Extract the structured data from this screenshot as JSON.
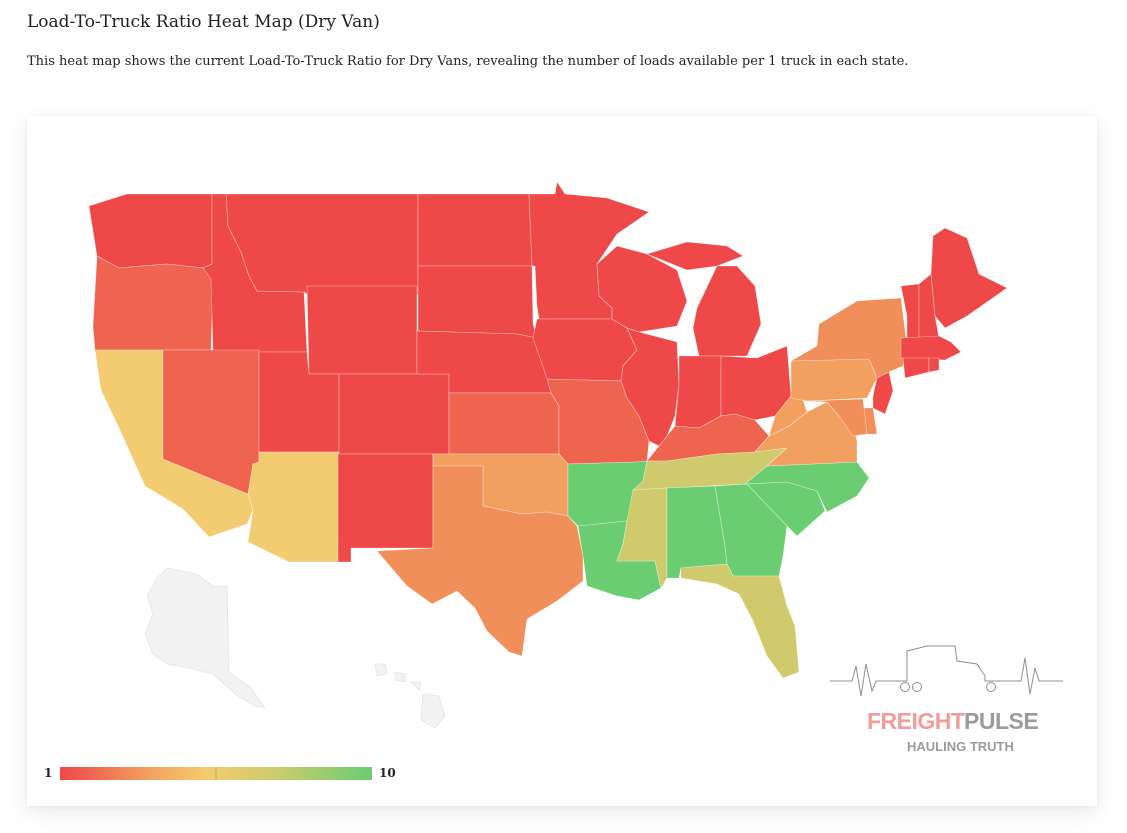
{
  "title": "Load-To-Truck Ratio Heat Map (Dry Van)",
  "description": "This heat map shows the current Load-To-Truck Ratio for Dry Vans, revealing the number of loads available per 1 truck in each state.",
  "legend": {
    "min_label": "1",
    "max_label": "10",
    "marker_value": 5.5,
    "colors": [
      "#ef4848",
      "#f2a560",
      "#f3cc6f",
      "#c9cc6d",
      "#6acd72"
    ]
  },
  "logo": {
    "brand_part1": "FREIGHT",
    "brand_part2": "PULSE",
    "tagline": "HAULING TRUTH"
  },
  "colors": {
    "red": "#ef4848",
    "red_orange": "#ee644e",
    "orange": "#f18f5a",
    "light_orange": "#f2a060",
    "yellow": "#f3cb71",
    "olive": "#cfcb6d",
    "green": "#6acd72",
    "no_data": "#f2f2f2"
  },
  "states": {
    "WA": "red",
    "OR": "red_orange",
    "CA": "yellow",
    "ID": "red",
    "NV": "red_orange",
    "MT": "red",
    "WY": "red",
    "UT": "red",
    "AZ": "yellow",
    "CO": "red",
    "NM": "red",
    "ND": "red",
    "SD": "red",
    "NE": "red",
    "KS": "red_orange",
    "OK": "light_orange",
    "TX": "orange",
    "MN": "red",
    "IA": "red",
    "MO": "red_orange",
    "AR": "green",
    "LA": "green",
    "WI": "red",
    "IL": "red",
    "MS": "olive",
    "MI": "red",
    "IN": "red",
    "OH": "red",
    "KY": "red_orange",
    "TN": "olive",
    "AL": "green",
    "GA": "green",
    "FL": "olive",
    "SC": "green",
    "NC": "green",
    "VA": "light_orange",
    "WV": "light_orange",
    "PA": "light_orange",
    "NY": "orange",
    "NJ": "red",
    "DE": "orange",
    "MD": "orange",
    "VT": "red",
    "NH": "red",
    "ME": "red",
    "MA": "red",
    "CT": "red",
    "RI": "red",
    "AK": "no_data",
    "HI": "no_data"
  }
}
